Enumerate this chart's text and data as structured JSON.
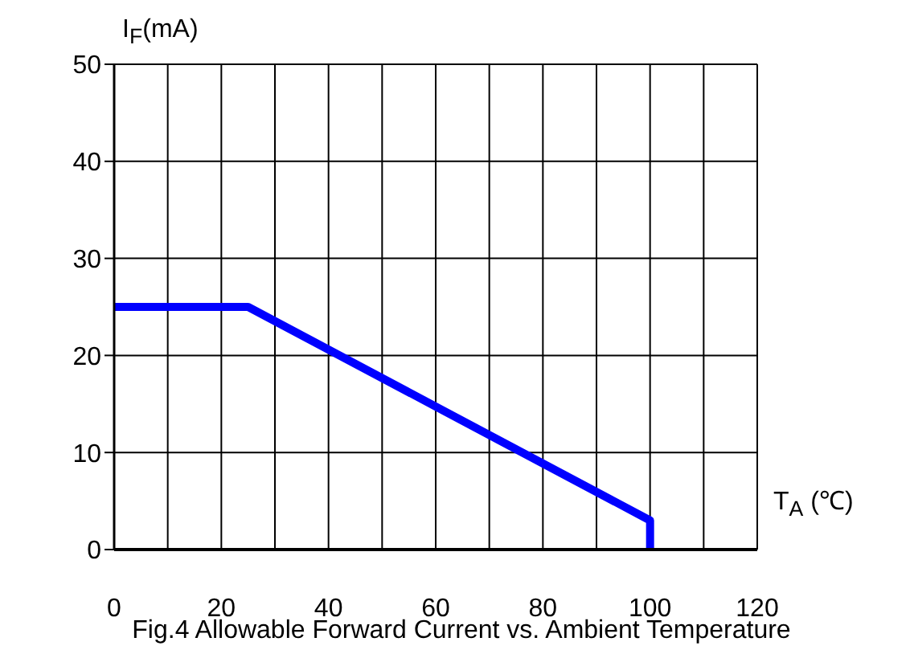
{
  "chart_data": {
    "type": "line",
    "title": "Fig.4 Allowable Forward Current vs. Ambient Temperature",
    "xlabel": "T$_{A}$ (℃)",
    "ylabel": "I$_{F}$(mA)",
    "series": [
      {
        "color": "#0000ff",
        "x": [
          0,
          25,
          100,
          100
        ],
        "values": [
          25,
          25,
          3,
          0
        ]
      }
    ],
    "xlim": [
      0,
      120
    ],
    "xticks": [
      0,
      {
        "value": 10,
        "label": null
      },
      20,
      {
        "value": 30,
        "label": null
      },
      40,
      {
        "value": 50,
        "label": null
      },
      60,
      {
        "value": 70,
        "label": null
      },
      80,
      {
        "value": 90,
        "label": null
      },
      100,
      {
        "value": 110,
        "label": null
      },
      120
    ],
    "ylim": [
      0,
      50
    ],
    "yticks": [
      0,
      10,
      20,
      30,
      40,
      50
    ],
    "grid": true,
    "marker": "none",
    "line_style": "solid"
  }
}
